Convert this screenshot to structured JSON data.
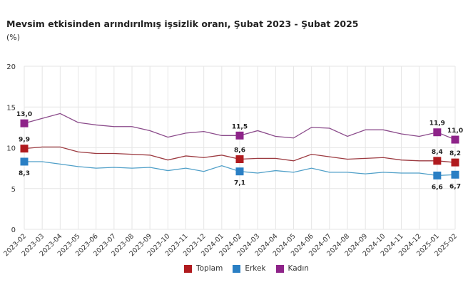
{
  "chart_data": {
    "type": "line",
    "title": "Mevsim etkisinden arındırılmış işsizlik oranı, Şubat 2023 - Şubat 2025",
    "ylabel": "(%)",
    "ylim": [
      0,
      20
    ],
    "yticks": [
      "0",
      "5",
      "10",
      "15",
      "20"
    ],
    "grid": true,
    "legend_position": "bottom",
    "x": [
      "2023-02",
      "2023-03",
      "2023-04",
      "2023-05",
      "2023-06",
      "2023-07",
      "2023-08",
      "2023-09",
      "2023-10",
      "2023-11",
      "2023-12",
      "2024-01",
      "2024-02",
      "2024-03",
      "2024-04",
      "2024-05",
      "2024-06",
      "2024-07",
      "2024-08",
      "2024-09",
      "2024-10",
      "2024-11",
      "2024-12",
      "2025-01",
      "2025-02"
    ],
    "series": [
      {
        "name": "Toplam",
        "color": "#b01a1e",
        "line_color": "#9c3a40",
        "values": [
          9.9,
          10.1,
          10.1,
          9.5,
          9.3,
          9.3,
          9.2,
          9.1,
          8.5,
          9.0,
          8.8,
          9.1,
          8.6,
          8.7,
          8.7,
          8.4,
          9.2,
          8.9,
          8.6,
          8.7,
          8.8,
          8.5,
          8.4,
          8.4,
          8.2
        ],
        "labels": {
          "0": "9,9",
          "12": "8,6",
          "23": "8,4",
          "24": "8,2"
        },
        "label_side": "above"
      },
      {
        "name": "Erkek",
        "color": "#2a7fc4",
        "line_color": "#4f9fc8",
        "values": [
          8.3,
          8.3,
          8.0,
          7.7,
          7.5,
          7.6,
          7.5,
          7.6,
          7.2,
          7.5,
          7.1,
          7.8,
          7.1,
          6.9,
          7.2,
          7.0,
          7.5,
          7.0,
          7.0,
          6.8,
          7.0,
          6.9,
          6.9,
          6.6,
          6.7
        ],
        "labels": {
          "0": "8,3",
          "12": "7,1",
          "23": "6,6",
          "24": "6,7"
        },
        "label_side": "below"
      },
      {
        "name": "Kadın",
        "color": "#8e2389",
        "line_color": "#8a4a8a",
        "values": [
          13.0,
          13.6,
          14.2,
          13.1,
          12.8,
          12.6,
          12.6,
          12.1,
          11.3,
          11.8,
          12.0,
          11.5,
          11.5,
          12.1,
          11.4,
          11.2,
          12.5,
          12.4,
          11.4,
          12.2,
          12.2,
          11.7,
          11.4,
          11.9,
          11.0
        ],
        "labels": {
          "0": "13,0",
          "12": "11,5",
          "23": "11,9",
          "24": "11,0"
        },
        "label_side": "above"
      }
    ]
  }
}
